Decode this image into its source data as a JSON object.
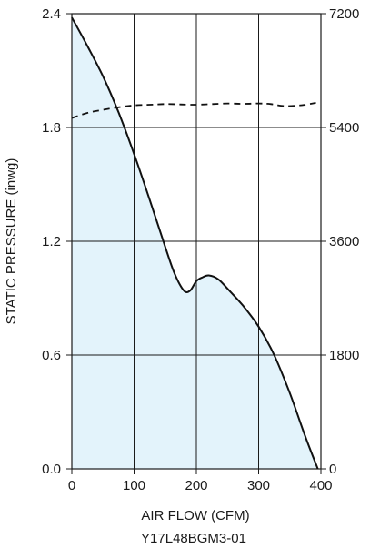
{
  "chart_data": {
    "type": "line",
    "xlabel": "AIR FLOW (CFM)",
    "ylabel": "STATIC PRESSURE (inwg)",
    "y2label": "",
    "footer": "Y17L48BGM3-01",
    "xlim": [
      0,
      400
    ],
    "ylim": [
      0,
      2.4
    ],
    "y2lim": [
      0,
      7200
    ],
    "x_ticks": [
      0,
      100,
      200,
      300,
      400
    ],
    "y_ticks": [
      0.0,
      0.6,
      1.2,
      1.8,
      2.4
    ],
    "y2_ticks": [
      0,
      1800,
      3600,
      5400,
      7200
    ],
    "x_tick_labels": [
      "0",
      "100",
      "200",
      "300",
      "400"
    ],
    "y_tick_labels": [
      "0.0",
      "0.6",
      "1.2",
      "1.8",
      "2.4"
    ],
    "y2_tick_labels": [
      "0",
      "1800",
      "3600",
      "5400",
      "7200"
    ],
    "grid": true,
    "fill_color": "#e3f3fb",
    "series": [
      {
        "style": "solid",
        "axis": "left",
        "filled": true,
        "x": [
          0,
          25,
          50,
          75,
          100,
          125,
          150,
          165,
          180,
          190,
          200,
          210,
          220,
          235,
          250,
          275,
          300,
          325,
          350,
          375,
          395
        ],
        "y": [
          2.38,
          2.23,
          2.07,
          1.88,
          1.66,
          1.42,
          1.17,
          1.03,
          0.94,
          0.94,
          0.99,
          1.01,
          1.02,
          1.0,
          0.95,
          0.86,
          0.75,
          0.6,
          0.4,
          0.17,
          0.0
        ]
      },
      {
        "style": "dashed",
        "axis": "right",
        "filled": false,
        "x": [
          0,
          25,
          50,
          75,
          100,
          125,
          150,
          175,
          200,
          225,
          250,
          275,
          300,
          320,
          340,
          360,
          375,
          392
        ],
        "y": [
          5550,
          5630,
          5680,
          5720,
          5750,
          5760,
          5770,
          5765,
          5760,
          5770,
          5780,
          5775,
          5780,
          5770,
          5740,
          5745,
          5760,
          5790
        ]
      }
    ]
  }
}
